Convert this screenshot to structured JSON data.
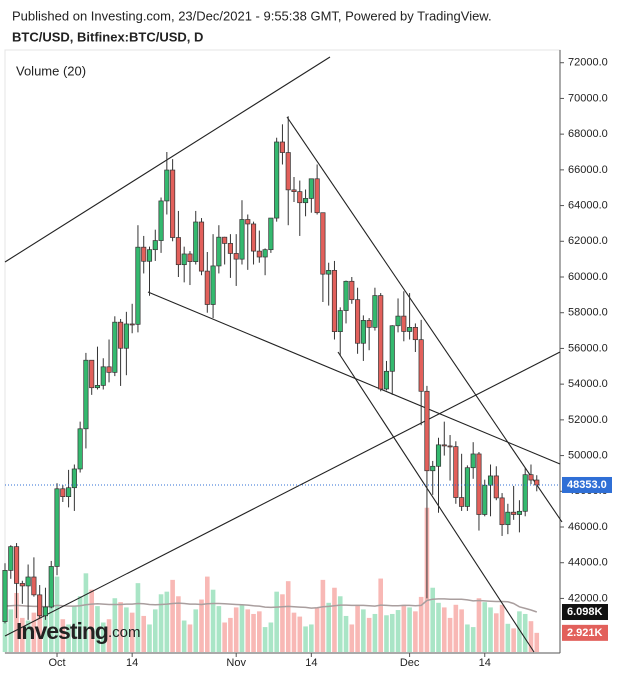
{
  "chart_data": {
    "type": "candlestick",
    "title": "Published on Investing.com, 23/Dec/2021 - 9:55:38 GMT, Powered by TradingView.",
    "subtitle": "BTC/USD, Bitfinex:BTC/USD, D",
    "volume_title": "Volume (20)",
    "logo": "Investing",
    "logo_suffix": ".com",
    "categories": [
      null,
      null,
      null,
      null,
      null,
      null,
      null,
      null,
      null,
      "Oct",
      null,
      null,
      null,
      null,
      null,
      null,
      null,
      null,
      null,
      null,
      null,
      null,
      "14",
      null,
      null,
      null,
      null,
      null,
      null,
      null,
      null,
      null,
      null,
      null,
      null,
      null,
      null,
      null,
      null,
      null,
      "Nov",
      null,
      null,
      null,
      null,
      null,
      null,
      null,
      null,
      null,
      null,
      null,
      null,
      "14",
      null,
      null,
      null,
      null,
      null,
      null,
      null,
      null,
      null,
      null,
      null,
      null,
      null,
      null,
      null,
      null,
      "Dec",
      null,
      null,
      null,
      null,
      null,
      null,
      null,
      null,
      null,
      null,
      null,
      null,
      "14",
      null,
      null,
      null,
      null,
      null,
      null,
      null,
      null,
      null
    ],
    "open": [
      40700,
      43570,
      44900,
      42840,
      42700,
      43200,
      42200,
      41030,
      41520,
      43790,
      48140,
      47700,
      48200,
      49250,
      51500,
      55340,
      53800,
      53930,
      54970,
      54660,
      57470,
      56010,
      57370,
      57350,
      61670,
      60880,
      61530,
      62040,
      64260,
      65990,
      62210,
      60690,
      61290,
      60860,
      63080,
      60330,
      58460,
      60620,
      62230,
      61880,
      61320,
      61000,
      63220,
      62970,
      61450,
      61120,
      61530,
      63300,
      67560,
      66970,
      64880,
      64780,
      64160,
      64400,
      65500,
      63600,
      60160,
      60370,
      56940,
      58120,
      59760,
      58730,
      56290,
      57570,
      57180,
      58960,
      53730,
      54720,
      57270,
      57810,
      56950,
      57180,
      56490,
      53600,
      49150,
      49400,
      50600,
      50540,
      50500,
      47650,
      47150,
      49320,
      50090,
      46700,
      48340,
      48860,
      47630,
      46130,
      46830,
      46700,
      46880,
      48930,
      48630
    ],
    "high": [
      43970,
      44980,
      45100,
      42990,
      43900,
      44300,
      42750,
      42600,
      44100,
      48450,
      48350,
      49200,
      49500,
      51900,
      55750,
      55300,
      56100,
      55450,
      56500,
      57800,
      57650,
      58050,
      58500,
      62900,
      62300,
      61700,
      62650,
      64450,
      67000,
      66600,
      63700,
      61700,
      61450,
      63700,
      63300,
      61400,
      62400,
      62900,
      62250,
      62400,
      62400,
      64300,
      63500,
      63100,
      62600,
      61600,
      63300,
      67800,
      68550,
      69000,
      65600,
      65400,
      64900,
      65500,
      66300,
      63600,
      60800,
      60900,
      58300,
      59800,
      60000,
      59400,
      57850,
      57700,
      59400,
      59100,
      55300,
      57300,
      58800,
      59200,
      59100,
      57400,
      57600,
      53900,
      49700,
      51000,
      51900,
      51150,
      50800,
      50100,
      49450,
      50750,
      50200,
      48650,
      49500,
      49400,
      47900,
      47300,
      48300,
      47500,
      49300,
      49500,
      48900
    ],
    "low": [
      40600,
      43100,
      40900,
      41700,
      40800,
      42100,
      40900,
      40800,
      41450,
      43300,
      47400,
      47100,
      46900,
      49050,
      50400,
      53400,
      53700,
      53700,
      54100,
      54450,
      53900,
      54500,
      56850,
      56900,
      60200,
      58950,
      60900,
      61350,
      63500,
      62000,
      60000,
      59700,
      59550,
      60700,
      60100,
      58000,
      57700,
      60200,
      60700,
      59950,
      59500,
      60700,
      60400,
      60700,
      60800,
      60100,
      61350,
      63100,
      66300,
      62900,
      64200,
      62300,
      63400,
      63600,
      63500,
      58600,
      58400,
      56500,
      55600,
      57400,
      58500,
      55700,
      55300,
      55900,
      57000,
      53600,
      53650,
      53400,
      56900,
      56400,
      56500,
      55800,
      51700,
      42000,
      47800,
      46800,
      50000,
      48600,
      47300,
      46900,
      46900,
      48700,
      45800,
      46600,
      46600,
      47500,
      45500,
      45600,
      46400,
      45700,
      46600,
      48400,
      48000
    ],
    "close": [
      43570,
      44900,
      42840,
      42700,
      43200,
      42200,
      41030,
      41520,
      43790,
      48140,
      47700,
      48200,
      49250,
      51500,
      55340,
      53800,
      53930,
      54970,
      54660,
      57470,
      56010,
      57370,
      57350,
      61670,
      60880,
      61530,
      62040,
      64260,
      65990,
      62210,
      60690,
      61290,
      60860,
      63080,
      60330,
      58460,
      60620,
      62230,
      61880,
      61320,
      61000,
      63220,
      62970,
      61450,
      61120,
      61530,
      63300,
      67560,
      66970,
      64880,
      64780,
      64160,
      64400,
      65500,
      63600,
      60160,
      60370,
      56940,
      58120,
      59760,
      58730,
      56290,
      57570,
      57180,
      58960,
      53730,
      54720,
      57270,
      57810,
      56950,
      57180,
      56490,
      53600,
      49150,
      49400,
      50600,
      50540,
      50500,
      47650,
      47150,
      49320,
      50090,
      46700,
      48340,
      48860,
      47630,
      46130,
      46830,
      46700,
      46880,
      48930,
      48630,
      48353
    ],
    "volume": [
      7800,
      6500,
      9000,
      5200,
      4800,
      6000,
      7500,
      5500,
      8200,
      11500,
      5000,
      4200,
      7000,
      8500,
      12000,
      9500,
      7000,
      4500,
      5000,
      8200,
      7600,
      6800,
      6000,
      10500,
      5500,
      4200,
      6500,
      8800,
      9200,
      11000,
      8500,
      4800,
      4200,
      6500,
      8000,
      11500,
      9500,
      7000,
      4500,
      5200,
      6800,
      7200,
      6500,
      5800,
      6200,
      3800,
      4500,
      9200,
      8800,
      10800,
      6000,
      5400,
      3900,
      4200,
      6800,
      11000,
      7500,
      9800,
      8500,
      5500,
      4200,
      7200,
      6500,
      5200,
      5800,
      11200,
      5600,
      5800,
      6400,
      7200,
      6800,
      6200,
      8400,
      22000,
      9800,
      7500,
      6800,
      5200,
      7200,
      6500,
      4200,
      3800,
      8200,
      7600,
      6800,
      5900,
      7200,
      4300,
      3600,
      6200,
      5800,
      4700,
      2921
    ],
    "volume_ma": [
      7000,
      7050,
      7100,
      7050,
      7000,
      6950,
      6950,
      6900,
      6950,
      7100,
      7050,
      7000,
      7000,
      7050,
      7200,
      7300,
      7350,
      7300,
      7250,
      7250,
      7250,
      7300,
      7300,
      7400,
      7350,
      7250,
      7200,
      7250,
      7300,
      7400,
      7450,
      7400,
      7300,
      7300,
      7250,
      7350,
      7400,
      7400,
      7350,
      7300,
      7250,
      7200,
      7150,
      7050,
      7000,
      6850,
      6800,
      6850,
      6900,
      6950,
      6900,
      6850,
      6800,
      6700,
      6750,
      6900,
      6950,
      7050,
      7150,
      7150,
      7100,
      7100,
      7100,
      7050,
      7000,
      7150,
      7100,
      7050,
      7050,
      7100,
      7100,
      7050,
      7100,
      7850,
      8050,
      8100,
      8100,
      8050,
      8050,
      8050,
      7950,
      7800,
      7850,
      7800,
      7750,
      7700,
      7700,
      7650,
      7400,
      6900,
      6650,
      6400,
      6098
    ],
    "ylim": [
      39000,
      72600
    ],
    "yticks": [
      {
        "value": 42000,
        "label": "42000.0"
      },
      {
        "value": 44000,
        "label": "44000.0"
      },
      {
        "value": 46000,
        "label": "46000.0"
      },
      {
        "value": 48000,
        "label": "48000.0"
      },
      {
        "value": 50000,
        "label": "50000.0"
      },
      {
        "value": 52000,
        "label": "52000.0"
      },
      {
        "value": 54000,
        "label": "54000.0"
      },
      {
        "value": 56000,
        "label": "56000.0"
      },
      {
        "value": 58000,
        "label": "58000.0"
      },
      {
        "value": 60000,
        "label": "60000.0"
      },
      {
        "value": 62000,
        "label": "62000.0"
      },
      {
        "value": 64000,
        "label": "64000.0"
      },
      {
        "value": 66000,
        "label": "66000.0"
      },
      {
        "value": 68000,
        "label": "68000.0"
      },
      {
        "value": 70000,
        "label": "70000.0"
      },
      {
        "value": 72000,
        "label": "72000.0"
      }
    ],
    "volume_lim": [
      0,
      91500
    ],
    "last_price": {
      "value": 48353,
      "label": "48353.0"
    },
    "volume_ma_last": {
      "value": 6098,
      "label": "6.098K"
    },
    "volume_last": {
      "value": 2921,
      "label": "2.921K"
    },
    "up_color": "#34b96f",
    "down_color": "#e2605b",
    "volume_up_color": "#a9e5c6",
    "volume_down_color": "#f8b8b5",
    "volume_ma_color": "#a99e9e",
    "last_price_color": "#2f6fd6"
  }
}
